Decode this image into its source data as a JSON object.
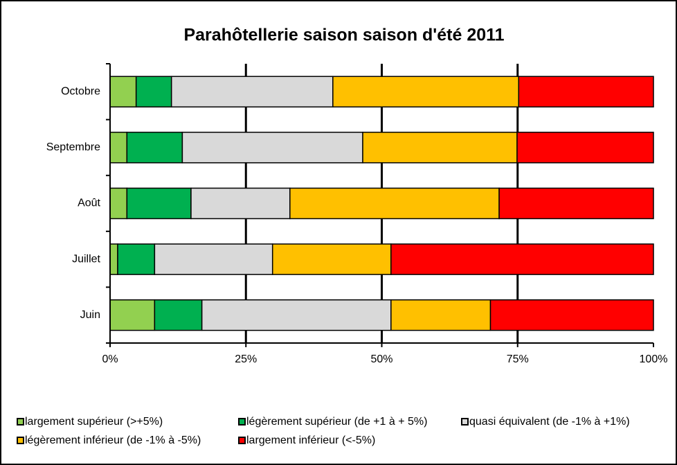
{
  "chart_data": {
    "type": "stacked-barh",
    "title": "Parahôtellerie saison saison d'été 2011",
    "categories": [
      "Juin",
      "Juillet",
      "Août",
      "Septembre",
      "Octobre"
    ],
    "series": [
      {
        "name": "largement supérieur (>+5%)",
        "color": "#92d050",
        "values": [
          8.2,
          1.4,
          3.1,
          3.1,
          4.8
        ]
      },
      {
        "name": "légèrement supérieur (de +1 à + 5%)",
        "color": "#00b050",
        "values": [
          8.7,
          6.8,
          11.8,
          10.2,
          6.5
        ]
      },
      {
        "name": "quasi équivalent (de -1% à +1%)",
        "color": "#d9d9d9",
        "values": [
          34.8,
          21.7,
          18.2,
          33.2,
          29.7
        ]
      },
      {
        "name": "légèrement inférieur (de -1% à -5%)",
        "color": "#ffc000",
        "values": [
          18.3,
          21.8,
          38.5,
          28.4,
          34.2
        ]
      },
      {
        "name": "largement inférieur (<-5%)",
        "color": "#ff0000",
        "values": [
          30.0,
          48.3,
          28.4,
          25.1,
          24.8
        ]
      }
    ],
    "xlim": [
      0,
      100
    ],
    "xticks": [
      {
        "value": 0,
        "label": "0%"
      },
      {
        "value": 25,
        "label": "25%"
      },
      {
        "value": 50,
        "label": "50%"
      },
      {
        "value": 75,
        "label": "75%"
      },
      {
        "value": 100,
        "label": "100%"
      }
    ],
    "grid": true,
    "legend": "bottom"
  }
}
